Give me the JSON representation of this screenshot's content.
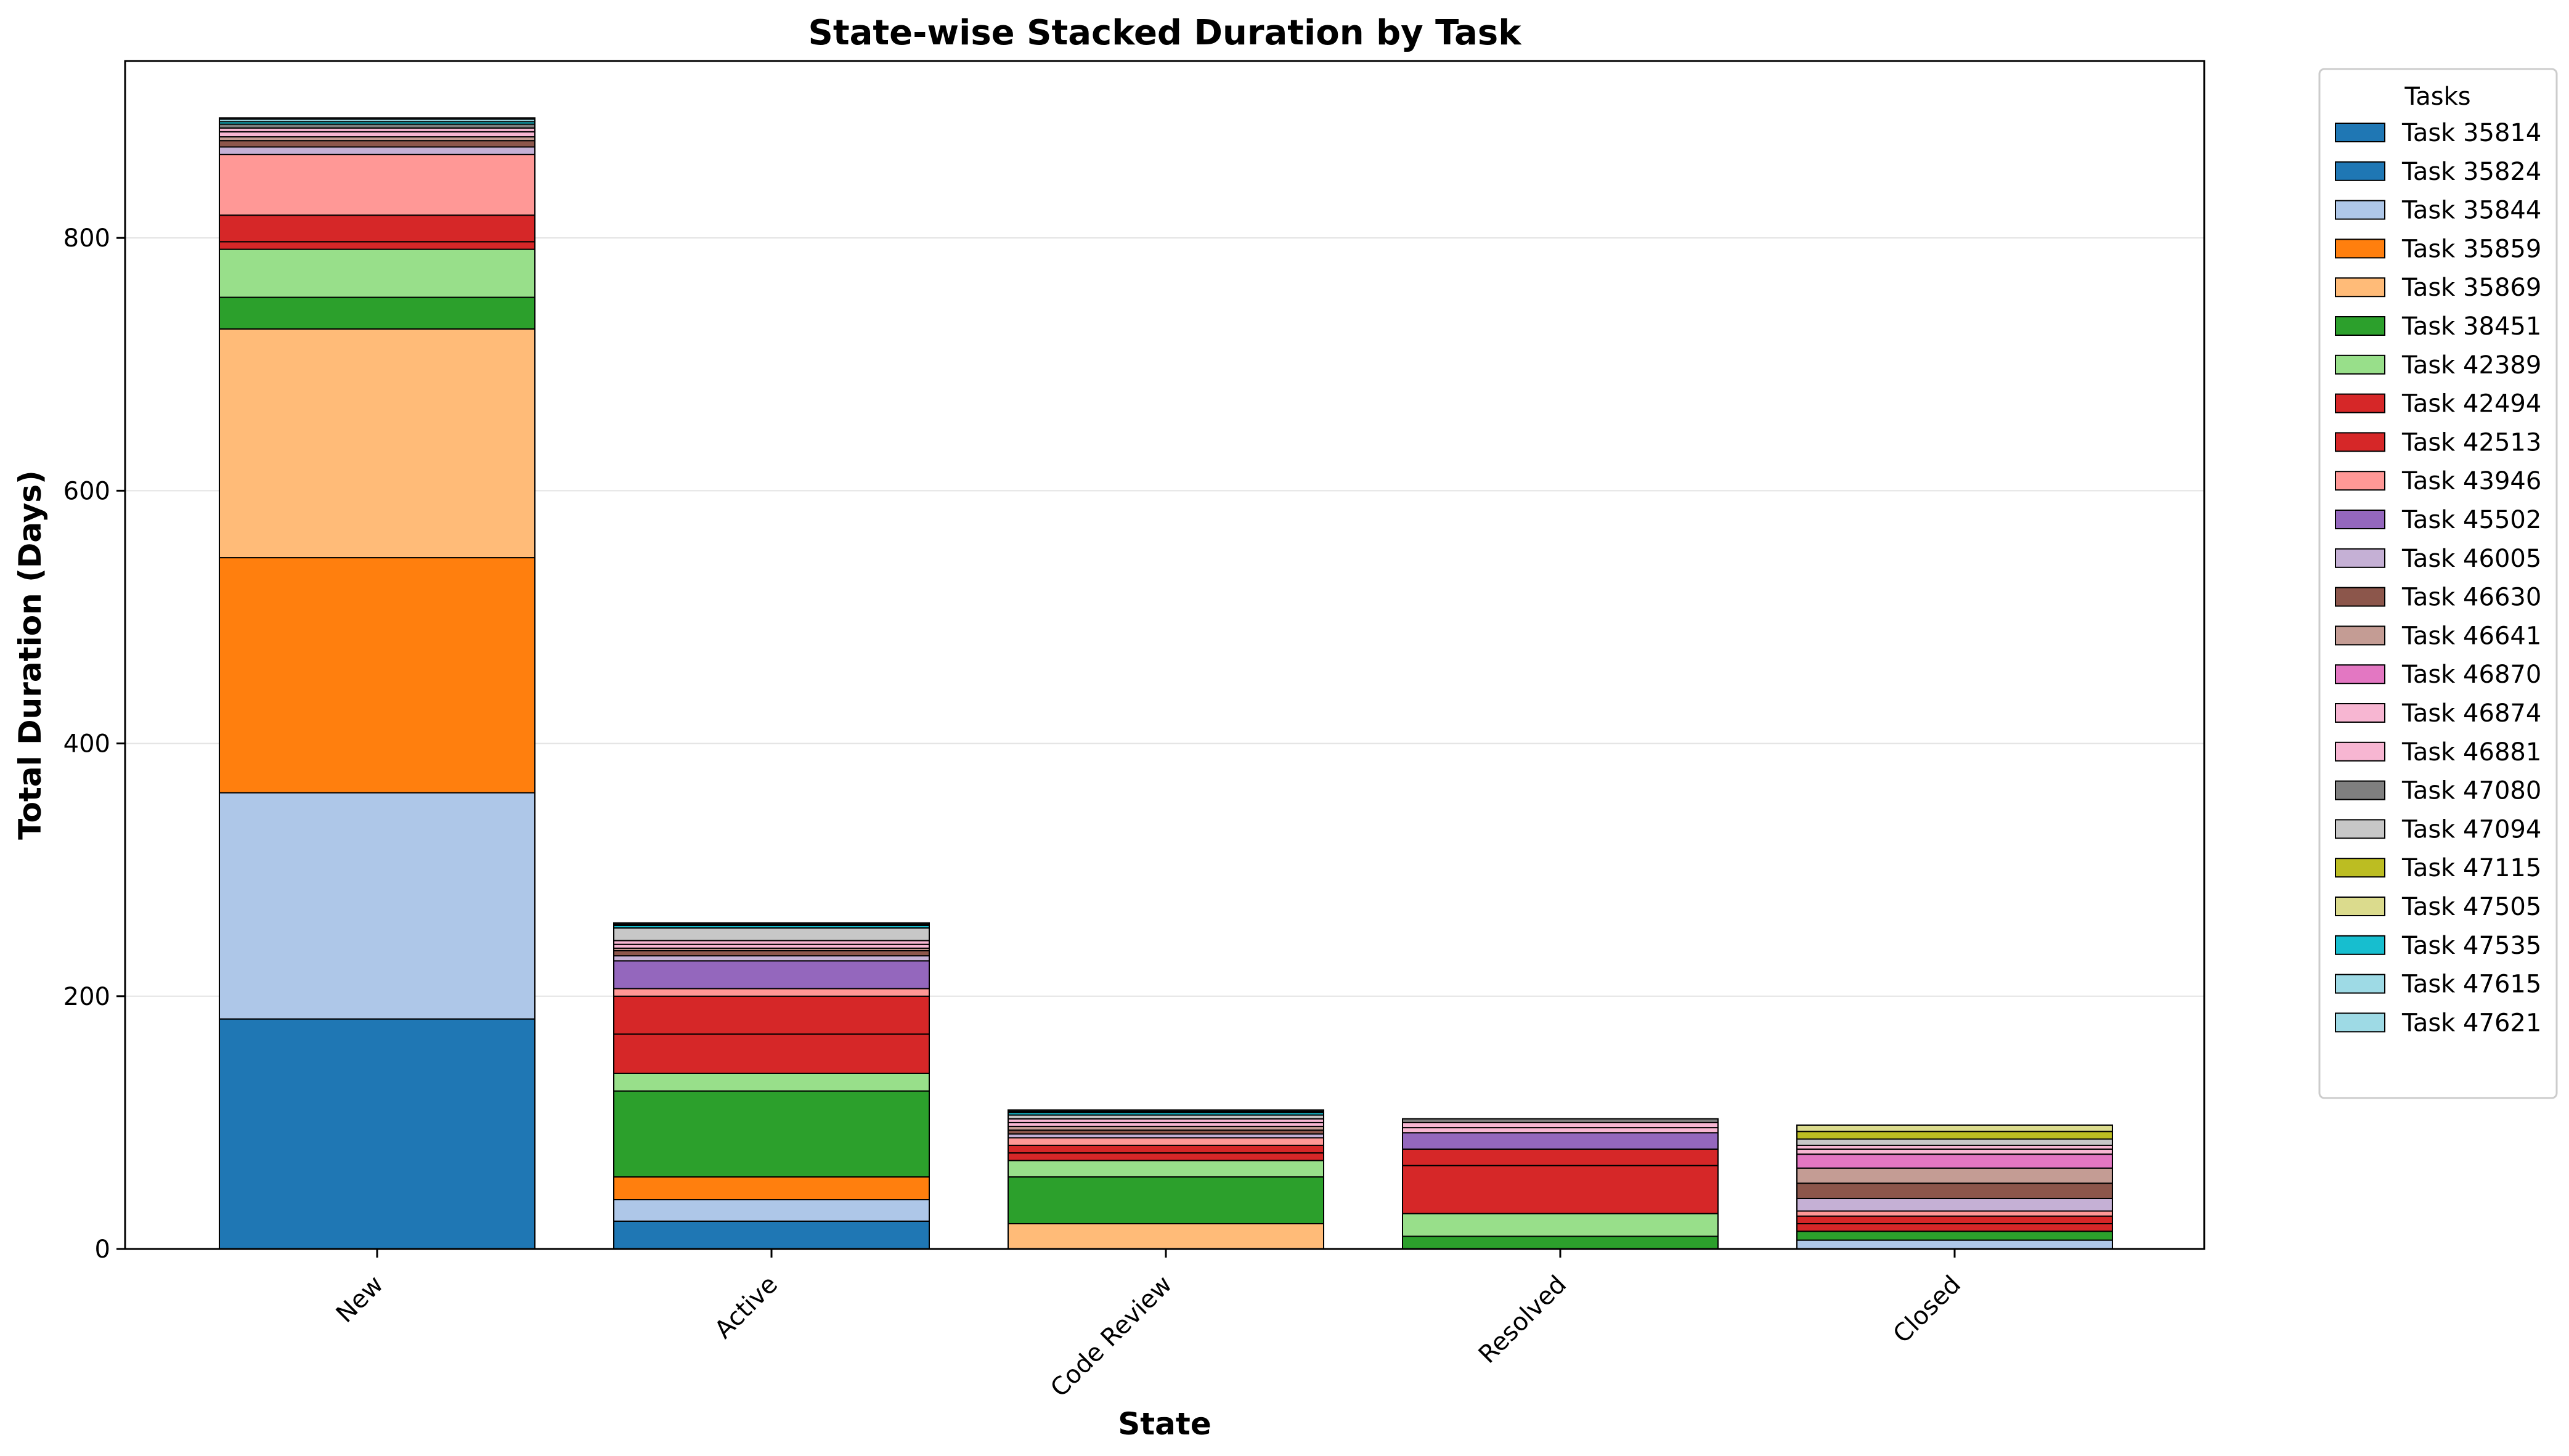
{
  "chart_data": {
    "type": "bar",
    "stacked": true,
    "title": "State-wise Stacked Duration by Task",
    "xlabel": "State",
    "ylabel": "Total Duration (Days)",
    "ylim": [
      0,
      940
    ],
    "yticks": [
      0,
      200,
      400,
      600,
      800
    ],
    "grid": "horizontal",
    "legend_title": "Tasks",
    "legend_position": "outside-right",
    "categories": [
      "New",
      "Active",
      "Code Review",
      "Resolved",
      "Closed"
    ],
    "series": [
      {
        "name": "Task 35814",
        "color": "#1f77b4",
        "values": [
          182,
          0,
          0,
          0,
          0
        ]
      },
      {
        "name": "Task 35824",
        "color": "#1f77b4",
        "values": [
          0,
          22,
          0,
          0,
          0
        ]
      },
      {
        "name": "Task 35844",
        "color": "#aec7e8",
        "values": [
          179,
          17,
          0,
          0,
          7
        ]
      },
      {
        "name": "Task 35859",
        "color": "#ff7f0e",
        "values": [
          186,
          18,
          0,
          0,
          0
        ]
      },
      {
        "name": "Task 35869",
        "color": "#ffbb78",
        "values": [
          181,
          0,
          20,
          0,
          0
        ]
      },
      {
        "name": "Task 38451",
        "color": "#2ca02c",
        "values": [
          25,
          68,
          37,
          10,
          7
        ]
      },
      {
        "name": "Task 42389",
        "color": "#98df8a",
        "values": [
          38,
          14,
          13,
          18,
          0
        ]
      },
      {
        "name": "Task 42494",
        "color": "#d62728",
        "values": [
          6,
          31,
          6,
          38,
          6
        ]
      },
      {
        "name": "Task 42513",
        "color": "#d62728",
        "values": [
          21,
          30,
          6,
          13,
          6
        ]
      },
      {
        "name": "Task 43946",
        "color": "#ff9896",
        "values": [
          48,
          6,
          6,
          0,
          4
        ]
      },
      {
        "name": "Task 45502",
        "color": "#9467bd",
        "values": [
          0,
          22,
          0,
          13,
          0
        ]
      },
      {
        "name": "Task 46005",
        "color": "#c5b0d5",
        "values": [
          6,
          4,
          3,
          0,
          10
        ]
      },
      {
        "name": "Task 46630",
        "color": "#8c564b",
        "values": [
          5,
          4,
          3,
          0,
          12
        ]
      },
      {
        "name": "Task 46641",
        "color": "#c49c94",
        "values": [
          3,
          2,
          3,
          0,
          12
        ]
      },
      {
        "name": "Task 46870",
        "color": "#e377c2",
        "values": [
          0,
          0,
          0,
          0,
          11
        ]
      },
      {
        "name": "Task 46874",
        "color": "#f7b6d2",
        "values": [
          4,
          3,
          3,
          4,
          4
        ]
      },
      {
        "name": "Task 46881",
        "color": "#f7b6d2",
        "values": [
          3,
          3,
          3,
          4,
          3
        ]
      },
      {
        "name": "Task 47080",
        "color": "#7f7f7f",
        "values": [
          3,
          0,
          0,
          3,
          0
        ]
      },
      {
        "name": "Task 47094",
        "color": "#c7c7c7",
        "values": [
          0,
          10,
          3,
          0,
          5
        ]
      },
      {
        "name": "Task 47115",
        "color": "#bcbd22",
        "values": [
          0,
          0,
          0,
          0,
          6
        ]
      },
      {
        "name": "Task 47505",
        "color": "#dbdb8d",
        "values": [
          0,
          0,
          0,
          0,
          5
        ]
      },
      {
        "name": "Task 47535",
        "color": "#17becf",
        "values": [
          2,
          2,
          2,
          0,
          0
        ]
      },
      {
        "name": "Task 47615",
        "color": "#9edae5",
        "values": [
          2,
          1,
          1,
          0,
          0
        ]
      },
      {
        "name": "Task 47621",
        "color": "#9edae5",
        "values": [
          1,
          1,
          1,
          0,
          0
        ]
      }
    ]
  }
}
